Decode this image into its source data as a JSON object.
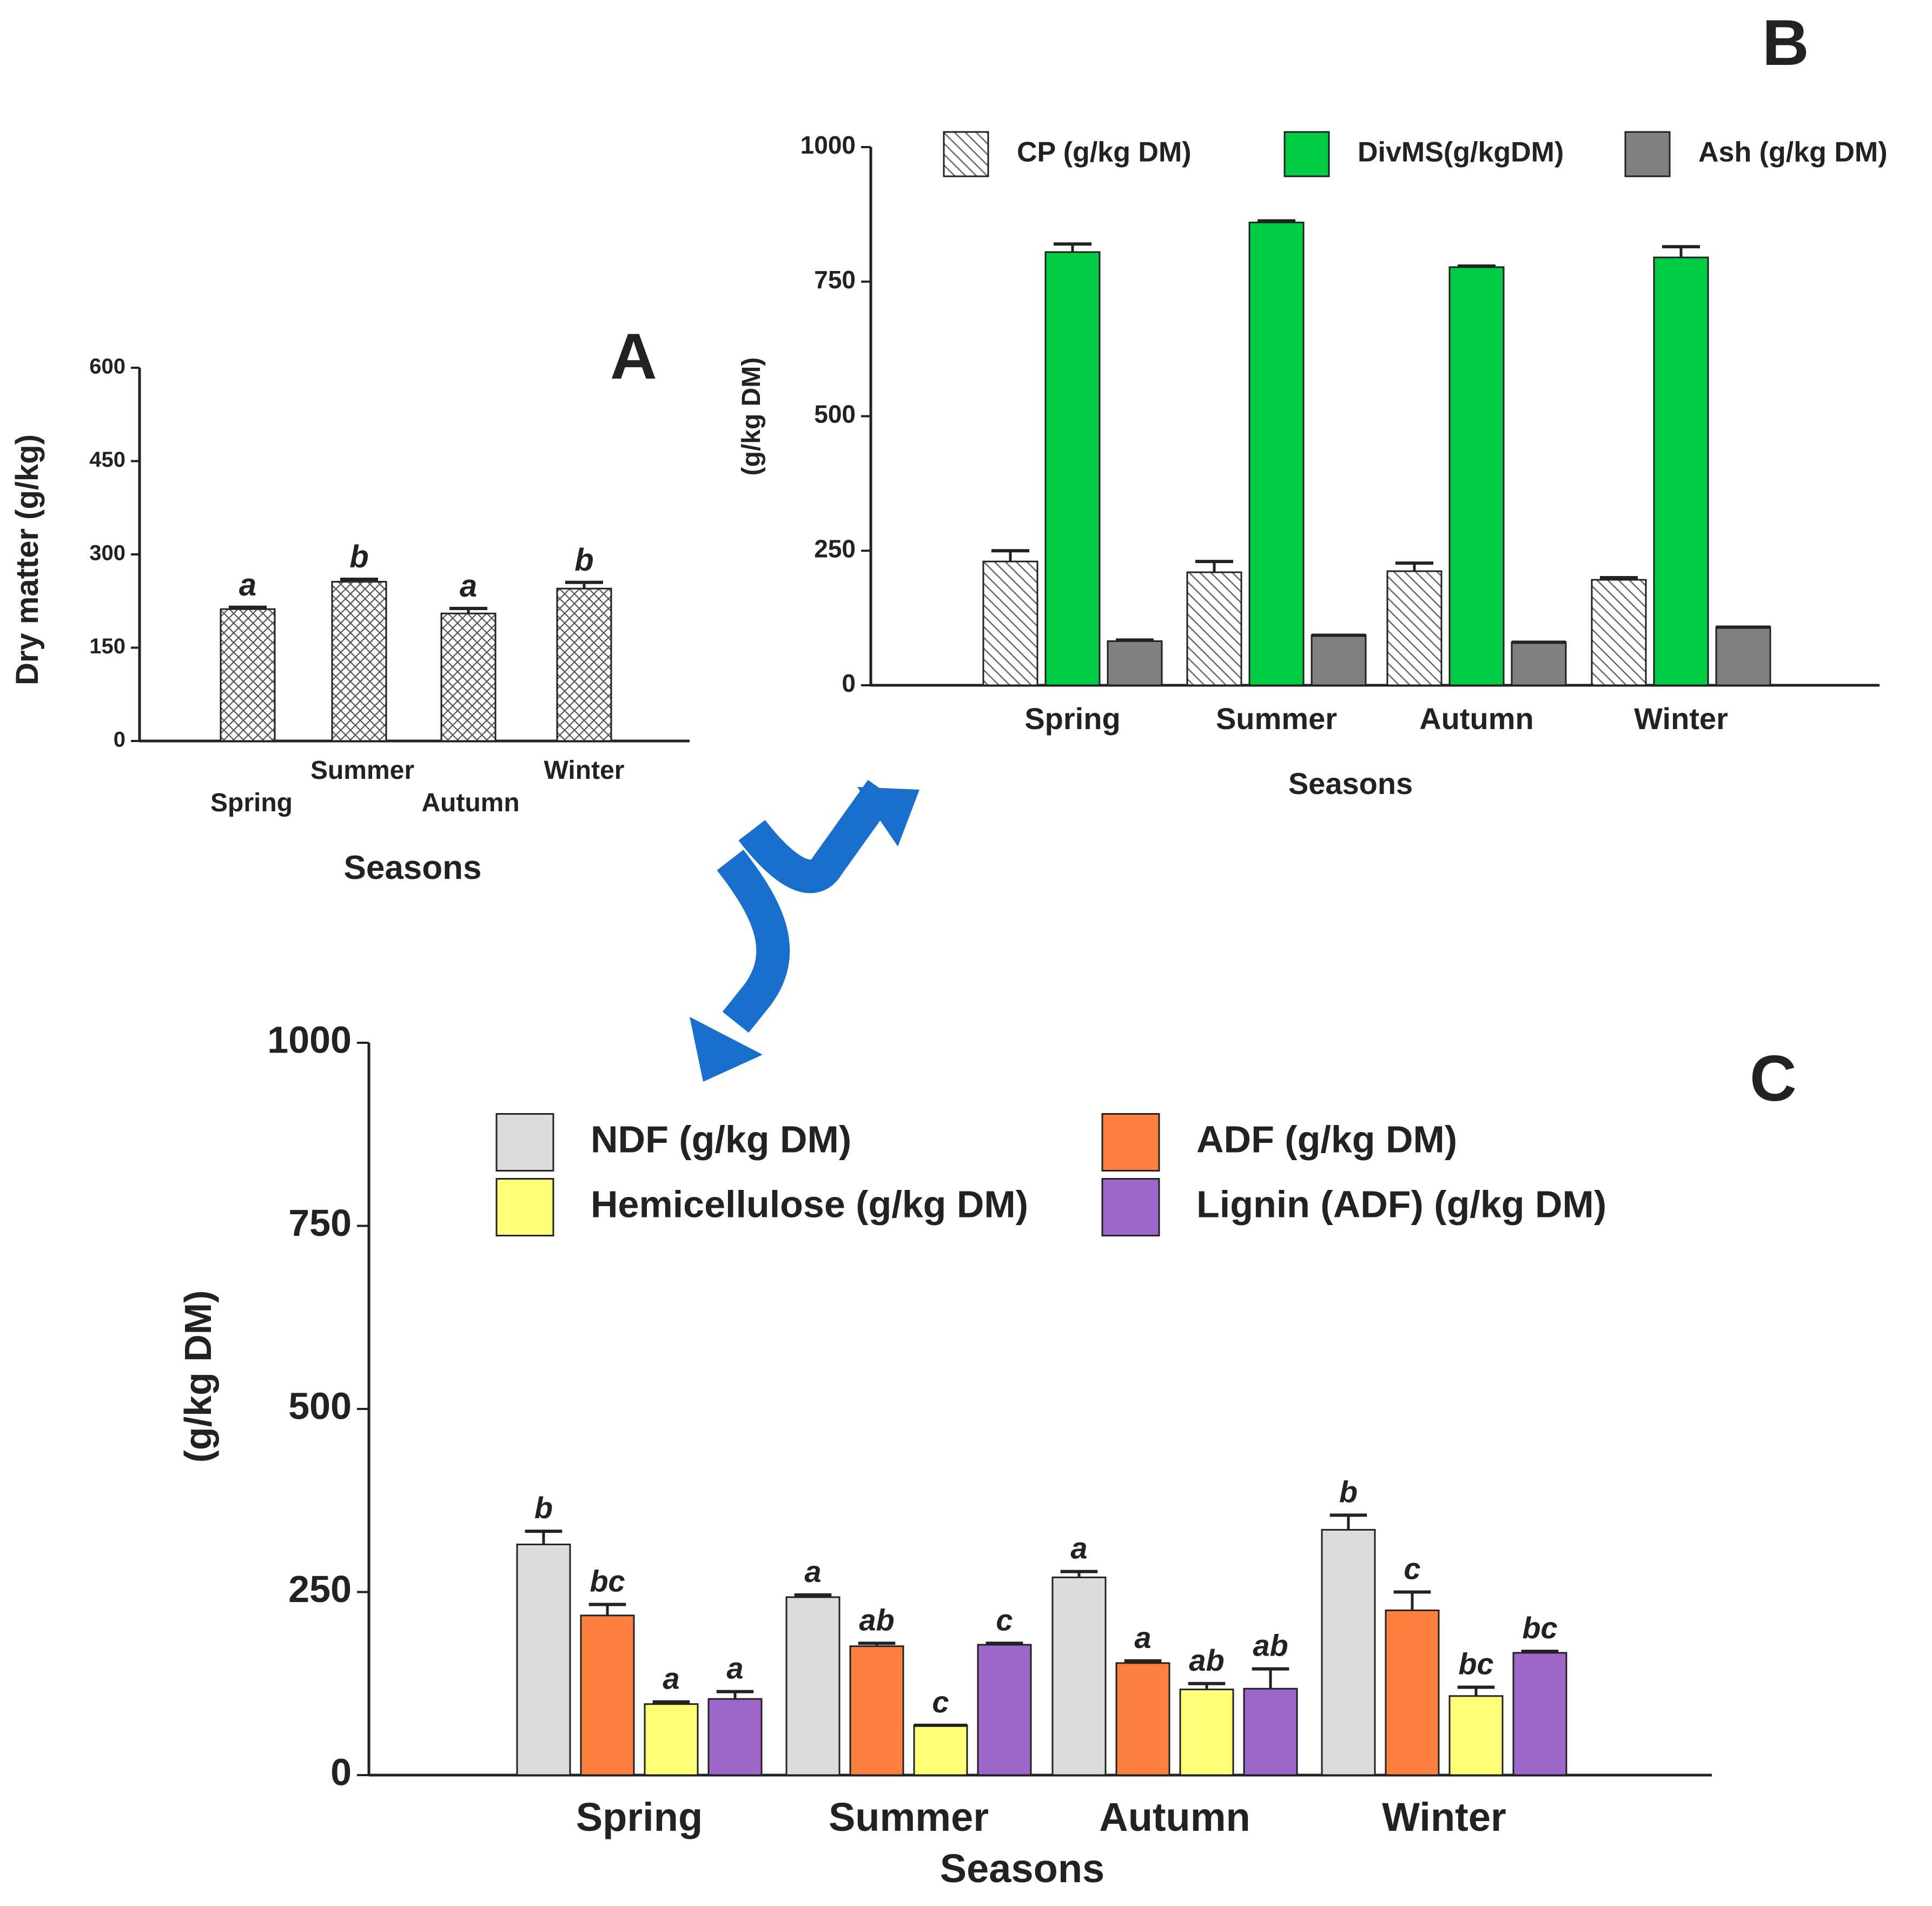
{
  "colors": {
    "axis": "#222222",
    "hatch_bg": "#ffffff",
    "hatch_line": "#555555",
    "divms": "#00cc44",
    "ash": "#808080",
    "ndf": "#dcdcdc",
    "adf": "#ff7f3f",
    "hemicellulose": "#ffff77",
    "lignin": "#9e66c8",
    "arrow": "#1a6fcc"
  },
  "icons": {
    "arrow": "curved-double-arrow-icon"
  },
  "chart_data": [
    {
      "id": "A",
      "panel_label": "A",
      "type": "bar",
      "title": "",
      "xlabel": "Seasons",
      "ylabel": "Dry matter (g/kg)",
      "ylim": [
        0,
        600
      ],
      "yticks": [
        0,
        150,
        300,
        450,
        600
      ],
      "ytick_labels": [
        "0",
        "150",
        "300",
        "450",
        "600"
      ],
      "categories": [
        "Spring",
        "Summer",
        "Autumn",
        "Winter"
      ],
      "series": [
        {
          "name": "Dry matter",
          "pattern": "crosshatch",
          "values": [
            212,
            256,
            205,
            245
          ],
          "errors": [
            3,
            4,
            8,
            10
          ],
          "letters": [
            "a",
            "b",
            "a",
            "b"
          ]
        }
      ]
    },
    {
      "id": "B",
      "panel_label": "B",
      "type": "bar",
      "title": "",
      "xlabel": "Seasons",
      "ylabel": "(g/kg DM)",
      "ylim": [
        0,
        1000
      ],
      "yticks": [
        0,
        250,
        500,
        750,
        1000
      ],
      "ytick_labels": [
        "0",
        "250",
        "500",
        "750",
        "1000"
      ],
      "categories": [
        "Spring",
        "Summer",
        "Autumn",
        "Winter"
      ],
      "legend_position": "top",
      "series": [
        {
          "name": "CP (g/kg DM)",
          "pattern": "diagonal",
          "values": [
            230,
            210,
            212,
            196
          ],
          "errors": [
            20,
            20,
            15,
            4
          ]
        },
        {
          "name": "DivMS(g/kgDM)",
          "color_key": "divms",
          "values": [
            805,
            860,
            777,
            795
          ],
          "errors": [
            15,
            3,
            2,
            20
          ]
        },
        {
          "name": "Ash (g/kg DM)",
          "color_key": "ash",
          "values": [
            82,
            93,
            80,
            108
          ],
          "errors": [
            2,
            0,
            0,
            0
          ]
        }
      ]
    },
    {
      "id": "C",
      "panel_label": "C",
      "type": "bar",
      "title": "",
      "xlabel": "Seasons",
      "ylabel": "(g/kg DM)",
      "ylim": [
        0,
        1000
      ],
      "yticks": [
        0,
        250,
        500,
        750,
        1000
      ],
      "ytick_labels": [
        "0",
        "250",
        "500",
        "750",
        "1000"
      ],
      "categories": [
        "Spring",
        "Summer",
        "Autumn",
        "Winter"
      ],
      "legend_position": "top",
      "series": [
        {
          "name": "NDF (g/kg DM)",
          "color_key": "ndf",
          "values": [
            315,
            243,
            270,
            335
          ],
          "errors": [
            18,
            3,
            8,
            20
          ],
          "letters": [
            "b",
            "a",
            "a",
            "b"
          ]
        },
        {
          "name": "ADF (g/kg DM)",
          "color_key": "adf",
          "values": [
            218,
            176,
            153,
            225
          ],
          "errors": [
            15,
            4,
            3,
            25
          ],
          "letters": [
            "bc",
            "ab",
            "a",
            "c"
          ]
        },
        {
          "name": "Hemicellulose (g/kg DM)",
          "color_key": "hemicellulose",
          "values": [
            97,
            68,
            117,
            108
          ],
          "errors": [
            3,
            0,
            8,
            12
          ],
          "letters": [
            "a",
            "c",
            "ab",
            "bc"
          ]
        },
        {
          "name": "Lignin (ADF) (g/kg DM)",
          "color_key": "lignin",
          "values": [
            104,
            178,
            118,
            167
          ],
          "errors": [
            10,
            2,
            27,
            2
          ],
          "letters": [
            "a",
            "c",
            "ab",
            "bc"
          ]
        }
      ]
    }
  ]
}
